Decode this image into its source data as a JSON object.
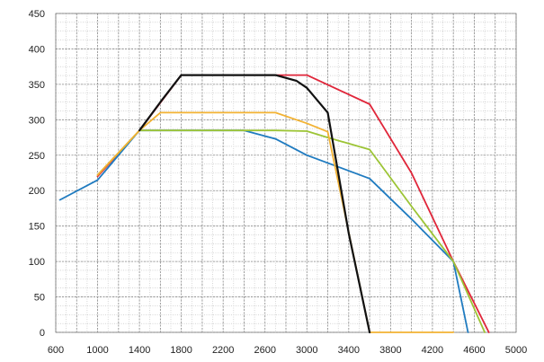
{
  "chart_data": {
    "type": "line",
    "title": "",
    "xlabel": "",
    "ylabel": "",
    "xlim": [
      600,
      5000
    ],
    "ylim": [
      0,
      450
    ],
    "x_ticks": [
      "600",
      "1000",
      "1400",
      "1800",
      "2200",
      "2600",
      "3000",
      "3400",
      "3800",
      "4200",
      "4600",
      "5000"
    ],
    "y_ticks": [
      "0",
      "50",
      "100",
      "150",
      "200",
      "250",
      "300",
      "350",
      "400",
      "450"
    ],
    "grid": true,
    "legend": "none",
    "series": [
      {
        "color": "#e0263a",
        "points": [
          [
            1000,
            220
          ],
          [
            1400,
            285
          ],
          [
            1800,
            363
          ],
          [
            2200,
            363
          ],
          [
            2600,
            363
          ],
          [
            3000,
            363
          ],
          [
            3600,
            322
          ],
          [
            4000,
            225
          ],
          [
            4400,
            100
          ],
          [
            4740,
            0
          ]
        ]
      },
      {
        "color": "#1f7bc0",
        "points": [
          [
            640,
            187
          ],
          [
            1000,
            215
          ],
          [
            1400,
            285
          ],
          [
            2000,
            285
          ],
          [
            2400,
            285
          ],
          [
            2700,
            273
          ],
          [
            3000,
            250
          ],
          [
            3600,
            217
          ],
          [
            4000,
            160
          ],
          [
            4400,
            100
          ],
          [
            4540,
            0
          ]
        ]
      },
      {
        "color": "#9cc435",
        "points": [
          [
            1000,
            222
          ],
          [
            1400,
            285
          ],
          [
            1600,
            285
          ],
          [
            2700,
            285
          ],
          [
            3000,
            284
          ],
          [
            3200,
            275
          ],
          [
            3600,
            258
          ],
          [
            4000,
            178
          ],
          [
            4400,
            100
          ],
          [
            4700,
            0
          ]
        ]
      },
      {
        "color": "#f2b233",
        "points": [
          [
            1000,
            222
          ],
          [
            1400,
            285
          ],
          [
            1600,
            310
          ],
          [
            2200,
            310
          ],
          [
            2700,
            310
          ],
          [
            3000,
            295
          ],
          [
            3200,
            283
          ],
          [
            3600,
            0
          ],
          [
            4200,
            0
          ],
          [
            4400,
            0
          ]
        ]
      },
      {
        "color": "#111111",
        "points": [
          [
            1400,
            285
          ],
          [
            1600,
            325
          ],
          [
            1800,
            363
          ],
          [
            2200,
            363
          ],
          [
            2700,
            363
          ],
          [
            2900,
            355
          ],
          [
            3000,
            345
          ],
          [
            3200,
            310
          ],
          [
            3400,
            140
          ],
          [
            3600,
            0
          ]
        ]
      }
    ]
  }
}
